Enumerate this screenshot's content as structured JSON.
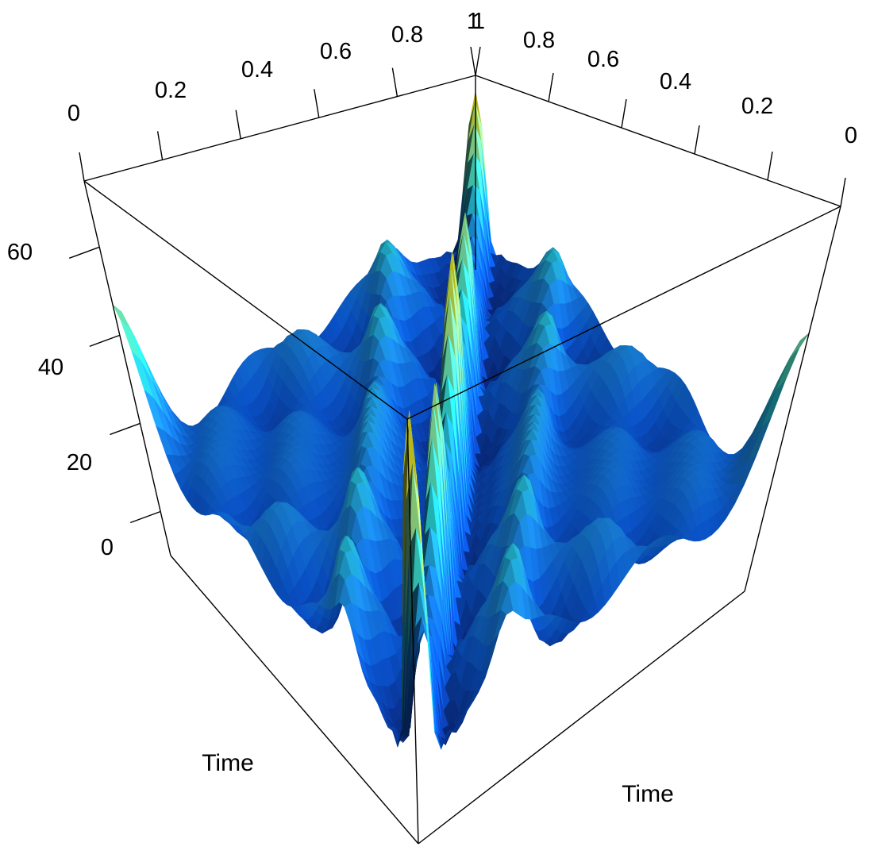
{
  "chart_data": {
    "type": "surface",
    "title": "",
    "x_axis": {
      "label": "Time",
      "range": [
        0,
        1
      ],
      "ticks": [
        "0",
        "0.2",
        "0.4",
        "0.6",
        "0.8",
        "1"
      ]
    },
    "y_axis": {
      "label": "Time",
      "range": [
        0,
        1
      ],
      "ticks": [
        "0",
        "0.2",
        "0.4",
        "0.6",
        "0.8",
        "1"
      ]
    },
    "z_axis": {
      "label": "",
      "range": [
        -10,
        75
      ],
      "ticks": [
        "0",
        "20",
        "40",
        "60"
      ]
    },
    "grid": false,
    "colormap": [
      "#0a2c8c",
      "#0a58d8",
      "#1b8ae6",
      "#2ad6d0",
      "#88e6a0",
      "#d8d820"
    ],
    "surface": {
      "description_values": {
        "diagonal_peak_at_0_0": 62,
        "diagonal_peak_at_0.5_0.5": 49,
        "diagonal_peak_at_0.25_0.25": 40,
        "diagonal_peak_at_1_1": 50,
        "edge_peak_at_1_0": 28,
        "edge_peak_at_0_1": 28,
        "typical_off_diagonal_level": 15,
        "valleys_near_diagonal": -8
      }
    }
  }
}
